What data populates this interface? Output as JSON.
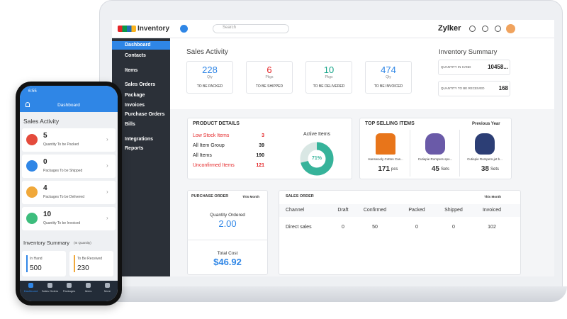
{
  "laptop": {
    "brand": "Inventory",
    "search": "Search",
    "org": "Zylker",
    "sidebar": [
      "Dashboard",
      "Contacts",
      "Items",
      "Sales Orders",
      "Package",
      "Invoices",
      "Purchase Orders",
      "Bills",
      "Integrations",
      "Reports"
    ],
    "sales_activity": {
      "title": "Sales Activity",
      "cards": [
        {
          "value": 228,
          "unit": "Qty",
          "label": "TO BE PACKED"
        },
        {
          "value": 6,
          "unit": "Pkgs",
          "label": "TO BE SHIPPED"
        },
        {
          "value": 10,
          "unit": "Pkgs",
          "label": "TO BE DELIVERED"
        },
        {
          "value": 474,
          "unit": "Qty",
          "label": "TO BE INVOICED"
        }
      ]
    },
    "inventory_summary": {
      "title": "Inventory Summary",
      "rows": [
        {
          "label": "QUANTITY IN HAND",
          "value": "10458..."
        },
        {
          "label": "QUANTITY TO BE RECEIVED",
          "value": "168"
        }
      ]
    },
    "product_details": {
      "title": "PRODUCT DETAILS",
      "rows": [
        {
          "label": "Low Stock Items",
          "value": 3
        },
        {
          "label": "All Item Group",
          "value": 39
        },
        {
          "label": "All Items",
          "value": 190
        },
        {
          "label": "Unconfirmed Items",
          "value": 121
        }
      ],
      "active_items": {
        "title": "Active Items",
        "percent": 71,
        "label": "71%"
      }
    },
    "top_selling": {
      "title": "TOP SELLING ITEMS",
      "period": "Previous Year",
      "items": [
        {
          "name": "Hanswooly Cotton Cas...",
          "qty": 171,
          "unit": "pcs"
        },
        {
          "name": "Cutiepie Rompers-spo...",
          "qty": 45,
          "unit": "Sets"
        },
        {
          "name": "Cutiepie Rompers-jet b...",
          "qty": 38,
          "unit": "Sets"
        }
      ]
    },
    "purchase_order": {
      "title": "PURCHASE ORDER",
      "period": "This Month",
      "qty_label": "Quantity Ordered",
      "qty": "2.00",
      "cost_label": "Total Cost",
      "cost": "$46.92"
    },
    "sales_order": {
      "title": "SALES ORDER",
      "period": "This Month",
      "columns": [
        "Channel",
        "Draft",
        "Confirmed",
        "Packed",
        "Shipped",
        "Invoiced"
      ],
      "rows": [
        [
          "Direct sales",
          0,
          50,
          0,
          0,
          102
        ]
      ]
    }
  },
  "phone": {
    "time": "6:55",
    "header": "Dashboard",
    "sales_title": "Sales Activity",
    "items": [
      {
        "value": 5,
        "label": "Quantity To be Packed"
      },
      {
        "value": 0,
        "label": "Packages To be Shipped"
      },
      {
        "value": 4,
        "label": "Packages To be Delivered"
      },
      {
        "value": 10,
        "label": "Quantity To be Invoiced"
      }
    ],
    "inventory_title": "Inventory Summary",
    "inventory_sub": "(In Quantity)",
    "in_hand_label": "In Hand",
    "in_hand": 500,
    "receive_label": "To Be Received",
    "receive": 230,
    "tabs": [
      "Dashboard",
      "Sales Orders",
      "Packages",
      "Items",
      "More"
    ]
  }
}
